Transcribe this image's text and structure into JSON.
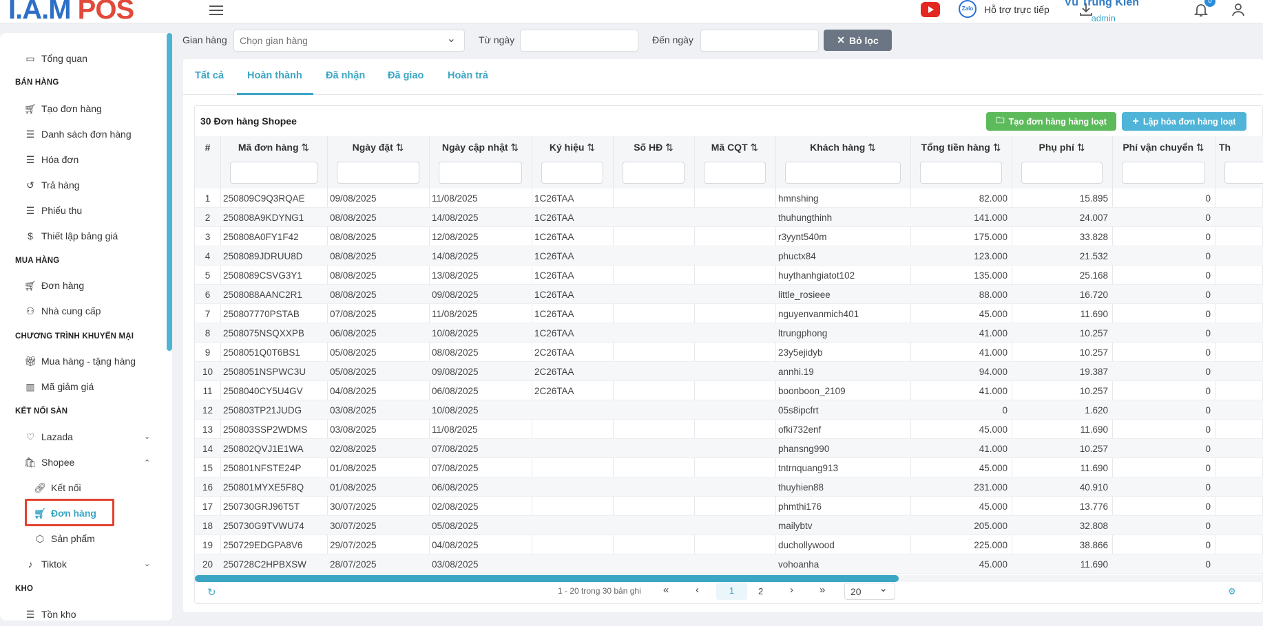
{
  "header": {
    "logo_part1": "I.A.M",
    "logo_part2": "POS",
    "support_label": "Hỗ trợ trực tiếp",
    "zalo_label": "Zalo",
    "user_name": "Vũ Trung Kiên",
    "user_role": "admin",
    "notifications": "0"
  },
  "sidebar": {
    "overview": "Tổng quan",
    "sections": {
      "sales": "BÁN HÀNG",
      "purchase": "MUA HÀNG",
      "promo": "CHƯƠNG TRÌNH KHUYẾN MẠI",
      "connect": "KẾT NỐI SÀN",
      "warehouse": "KHO"
    },
    "items": {
      "create_order": "Tạo đơn hàng",
      "order_list": "Danh sách đơn hàng",
      "invoice": "Hóa đơn",
      "returns": "Trả hàng",
      "receipt": "Phiếu thu",
      "pricing": "Thiết lập bảng giá",
      "purchase_order": "Đơn hàng",
      "supplier": "Nhà cung cấp",
      "buy_gift": "Mua hàng - tặng hàng",
      "coupon": "Mã giảm giá",
      "lazada": "Lazada",
      "shopee": "Shopee",
      "shopee_connect": "Kết nối",
      "shopee_orders": "Đơn hàng",
      "shopee_products": "Sản phẩm",
      "tiktok": "Tiktok",
      "stock": "Tồn kho"
    }
  },
  "filters": {
    "store_label": "Gian hàng",
    "store_placeholder": "Chọn gian hàng",
    "from_label": "Từ ngày",
    "to_label": "Đến ngày",
    "clear_label": "Bỏ lọc"
  },
  "tabs": [
    "Tất cả",
    "Hoàn thành",
    "Đã nhận",
    "Đã giao",
    "Hoàn trả"
  ],
  "card": {
    "title": "30 Đơn hàng Shopee",
    "btn_bulk_order": "Tạo đơn hàng hàng loạt",
    "btn_bulk_invoice": "Lập hóa đơn hàng loạt"
  },
  "columns": [
    "#",
    "Mã đơn hàng",
    "Ngày đặt",
    "Ngày cập nhật",
    "Ký hiệu",
    "Số HĐ",
    "Mã CQT",
    "Khách hàng",
    "Tổng tiền hàng",
    "Phụ phí",
    "Phí vận chuyển",
    "Th"
  ],
  "rows": [
    [
      "1",
      "250809C9Q3RQAE",
      "09/08/2025",
      "11/08/2025",
      "1C26TAA",
      "",
      "",
      "hmnshing",
      "82.000",
      "15.895",
      "0"
    ],
    [
      "2",
      "250808A9KDYNG1",
      "08/08/2025",
      "14/08/2025",
      "1C26TAA",
      "",
      "",
      "thuhungthinh",
      "141.000",
      "24.007",
      "0"
    ],
    [
      "3",
      "250808A0FY1F42",
      "08/08/2025",
      "12/08/2025",
      "1C26TAA",
      "",
      "",
      "r3yynt540m",
      "175.000",
      "33.828",
      "0"
    ],
    [
      "4",
      "2508089JDRUU8D",
      "08/08/2025",
      "14/08/2025",
      "1C26TAA",
      "",
      "",
      "phuctx84",
      "123.000",
      "21.532",
      "0"
    ],
    [
      "5",
      "2508089CSVG3Y1",
      "08/08/2025",
      "13/08/2025",
      "1C26TAA",
      "",
      "",
      "huythanhgiatot102",
      "135.000",
      "25.168",
      "0"
    ],
    [
      "6",
      "2508088AANC2R1",
      "08/08/2025",
      "09/08/2025",
      "1C26TAA",
      "",
      "",
      "little_rosieee",
      "88.000",
      "16.720",
      "0"
    ],
    [
      "7",
      "250807770PSTAB",
      "07/08/2025",
      "11/08/2025",
      "1C26TAA",
      "",
      "",
      "nguyenvanmich401",
      "45.000",
      "11.690",
      "0"
    ],
    [
      "8",
      "2508075NSQXXPB",
      "06/08/2025",
      "10/08/2025",
      "1C26TAA",
      "",
      "",
      "ltrungphong",
      "41.000",
      "10.257",
      "0"
    ],
    [
      "9",
      "2508051Q0T6BS1",
      "05/08/2025",
      "08/08/2025",
      "2C26TAA",
      "",
      "",
      "23y5ejidyb",
      "41.000",
      "10.257",
      "0"
    ],
    [
      "10",
      "2508051NSPWC3U",
      "05/08/2025",
      "09/08/2025",
      "2C26TAA",
      "",
      "",
      "annhi.19",
      "94.000",
      "19.387",
      "0"
    ],
    [
      "11",
      "2508040CY5U4GV",
      "04/08/2025",
      "06/08/2025",
      "2C26TAA",
      "",
      "",
      "boonboon_2109",
      "41.000",
      "10.257",
      "0"
    ],
    [
      "12",
      "250803TP21JUDG",
      "03/08/2025",
      "10/08/2025",
      "",
      "",
      "",
      "05s8ipcfrt",
      "0",
      "1.620",
      "0"
    ],
    [
      "13",
      "250803SSP2WDMS",
      "03/08/2025",
      "11/08/2025",
      "",
      "",
      "",
      "ofki732enf",
      "45.000",
      "11.690",
      "0"
    ],
    [
      "14",
      "250802QVJ1E1WA",
      "02/08/2025",
      "07/08/2025",
      "",
      "",
      "",
      "phansng990",
      "41.000",
      "10.257",
      "0"
    ],
    [
      "15",
      "250801NFSTE24P",
      "01/08/2025",
      "07/08/2025",
      "",
      "",
      "",
      "tntrnquang913",
      "45.000",
      "11.690",
      "0"
    ],
    [
      "16",
      "250801MYXE5F8Q",
      "01/08/2025",
      "06/08/2025",
      "",
      "",
      "",
      "thuyhien88",
      "231.000",
      "40.910",
      "0"
    ],
    [
      "17",
      "250730GRJ96T5T",
      "30/07/2025",
      "02/08/2025",
      "",
      "",
      "",
      "phmthi176",
      "45.000",
      "13.776",
      "0"
    ],
    [
      "18",
      "250730G9TVWU74",
      "30/07/2025",
      "05/08/2025",
      "",
      "",
      "",
      "mailybtv",
      "205.000",
      "32.808",
      "0"
    ],
    [
      "19",
      "250729EDGPA8V6",
      "29/07/2025",
      "04/08/2025",
      "",
      "",
      "",
      "duchollywood",
      "225.000",
      "38.866",
      "0"
    ],
    [
      "20",
      "250728C2HPBXSW",
      "28/07/2025",
      "03/08/2025",
      "",
      "",
      "",
      "vohoanha",
      "45.000",
      "11.690",
      "0"
    ]
  ],
  "pager": {
    "summary": "1 - 20 trong 30 bản ghi",
    "first": "«",
    "prev": "‹",
    "next": "›",
    "last": "»",
    "pages": [
      "1",
      "2"
    ],
    "current": "1",
    "page_size": "20"
  },
  "colors": {
    "accent": "#3ba6c4",
    "green": "#5cba5a",
    "highlight": "#e3412f"
  }
}
